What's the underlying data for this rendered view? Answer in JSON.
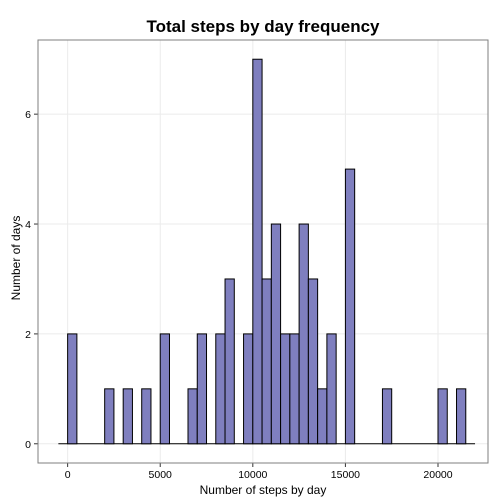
{
  "chart_data": {
    "type": "bar",
    "title": "Total steps by day frequency",
    "xlabel": "Number of steps by day",
    "ylabel": "Number of days",
    "bin_width": 500,
    "bins": [
      {
        "x": 250,
        "count": 2
      },
      {
        "x": 2250,
        "count": 1
      },
      {
        "x": 3250,
        "count": 1
      },
      {
        "x": 4250,
        "count": 1
      },
      {
        "x": 5250,
        "count": 2
      },
      {
        "x": 6750,
        "count": 1
      },
      {
        "x": 7250,
        "count": 2
      },
      {
        "x": 8250,
        "count": 2
      },
      {
        "x": 8750,
        "count": 3
      },
      {
        "x": 9750,
        "count": 2
      },
      {
        "x": 10250,
        "count": 7
      },
      {
        "x": 10750,
        "count": 3
      },
      {
        "x": 11250,
        "count": 4
      },
      {
        "x": 11750,
        "count": 2
      },
      {
        "x": 12250,
        "count": 2
      },
      {
        "x": 12750,
        "count": 4
      },
      {
        "x": 13250,
        "count": 3
      },
      {
        "x": 13750,
        "count": 1
      },
      {
        "x": 14250,
        "count": 2
      },
      {
        "x": 15250,
        "count": 5
      },
      {
        "x": 17250,
        "count": 1
      },
      {
        "x": 20250,
        "count": 1
      },
      {
        "x": 21250,
        "count": 1
      }
    ],
    "x_baseline_range": [
      -500,
      22000
    ],
    "xlim": [
      -1600,
      22700
    ],
    "ylim": [
      -0.35,
      7.35
    ],
    "x_ticks": [
      {
        "value": 0,
        "label": "0"
      },
      {
        "value": 5000,
        "label": "5000"
      },
      {
        "value": 10000,
        "label": "10000"
      },
      {
        "value": 15000,
        "label": "15000"
      },
      {
        "value": 20000,
        "label": "20000"
      }
    ],
    "y_ticks": [
      {
        "value": 0,
        "label": "0"
      },
      {
        "value": 2,
        "label": "2"
      },
      {
        "value": 4,
        "label": "4"
      },
      {
        "value": 6,
        "label": "6"
      }
    ],
    "grid": true,
    "bar_fill": "#7f7fbf",
    "bar_stroke": "#000000",
    "panel_border": "#7f7f7f",
    "grid_color": "#ebebeb"
  }
}
